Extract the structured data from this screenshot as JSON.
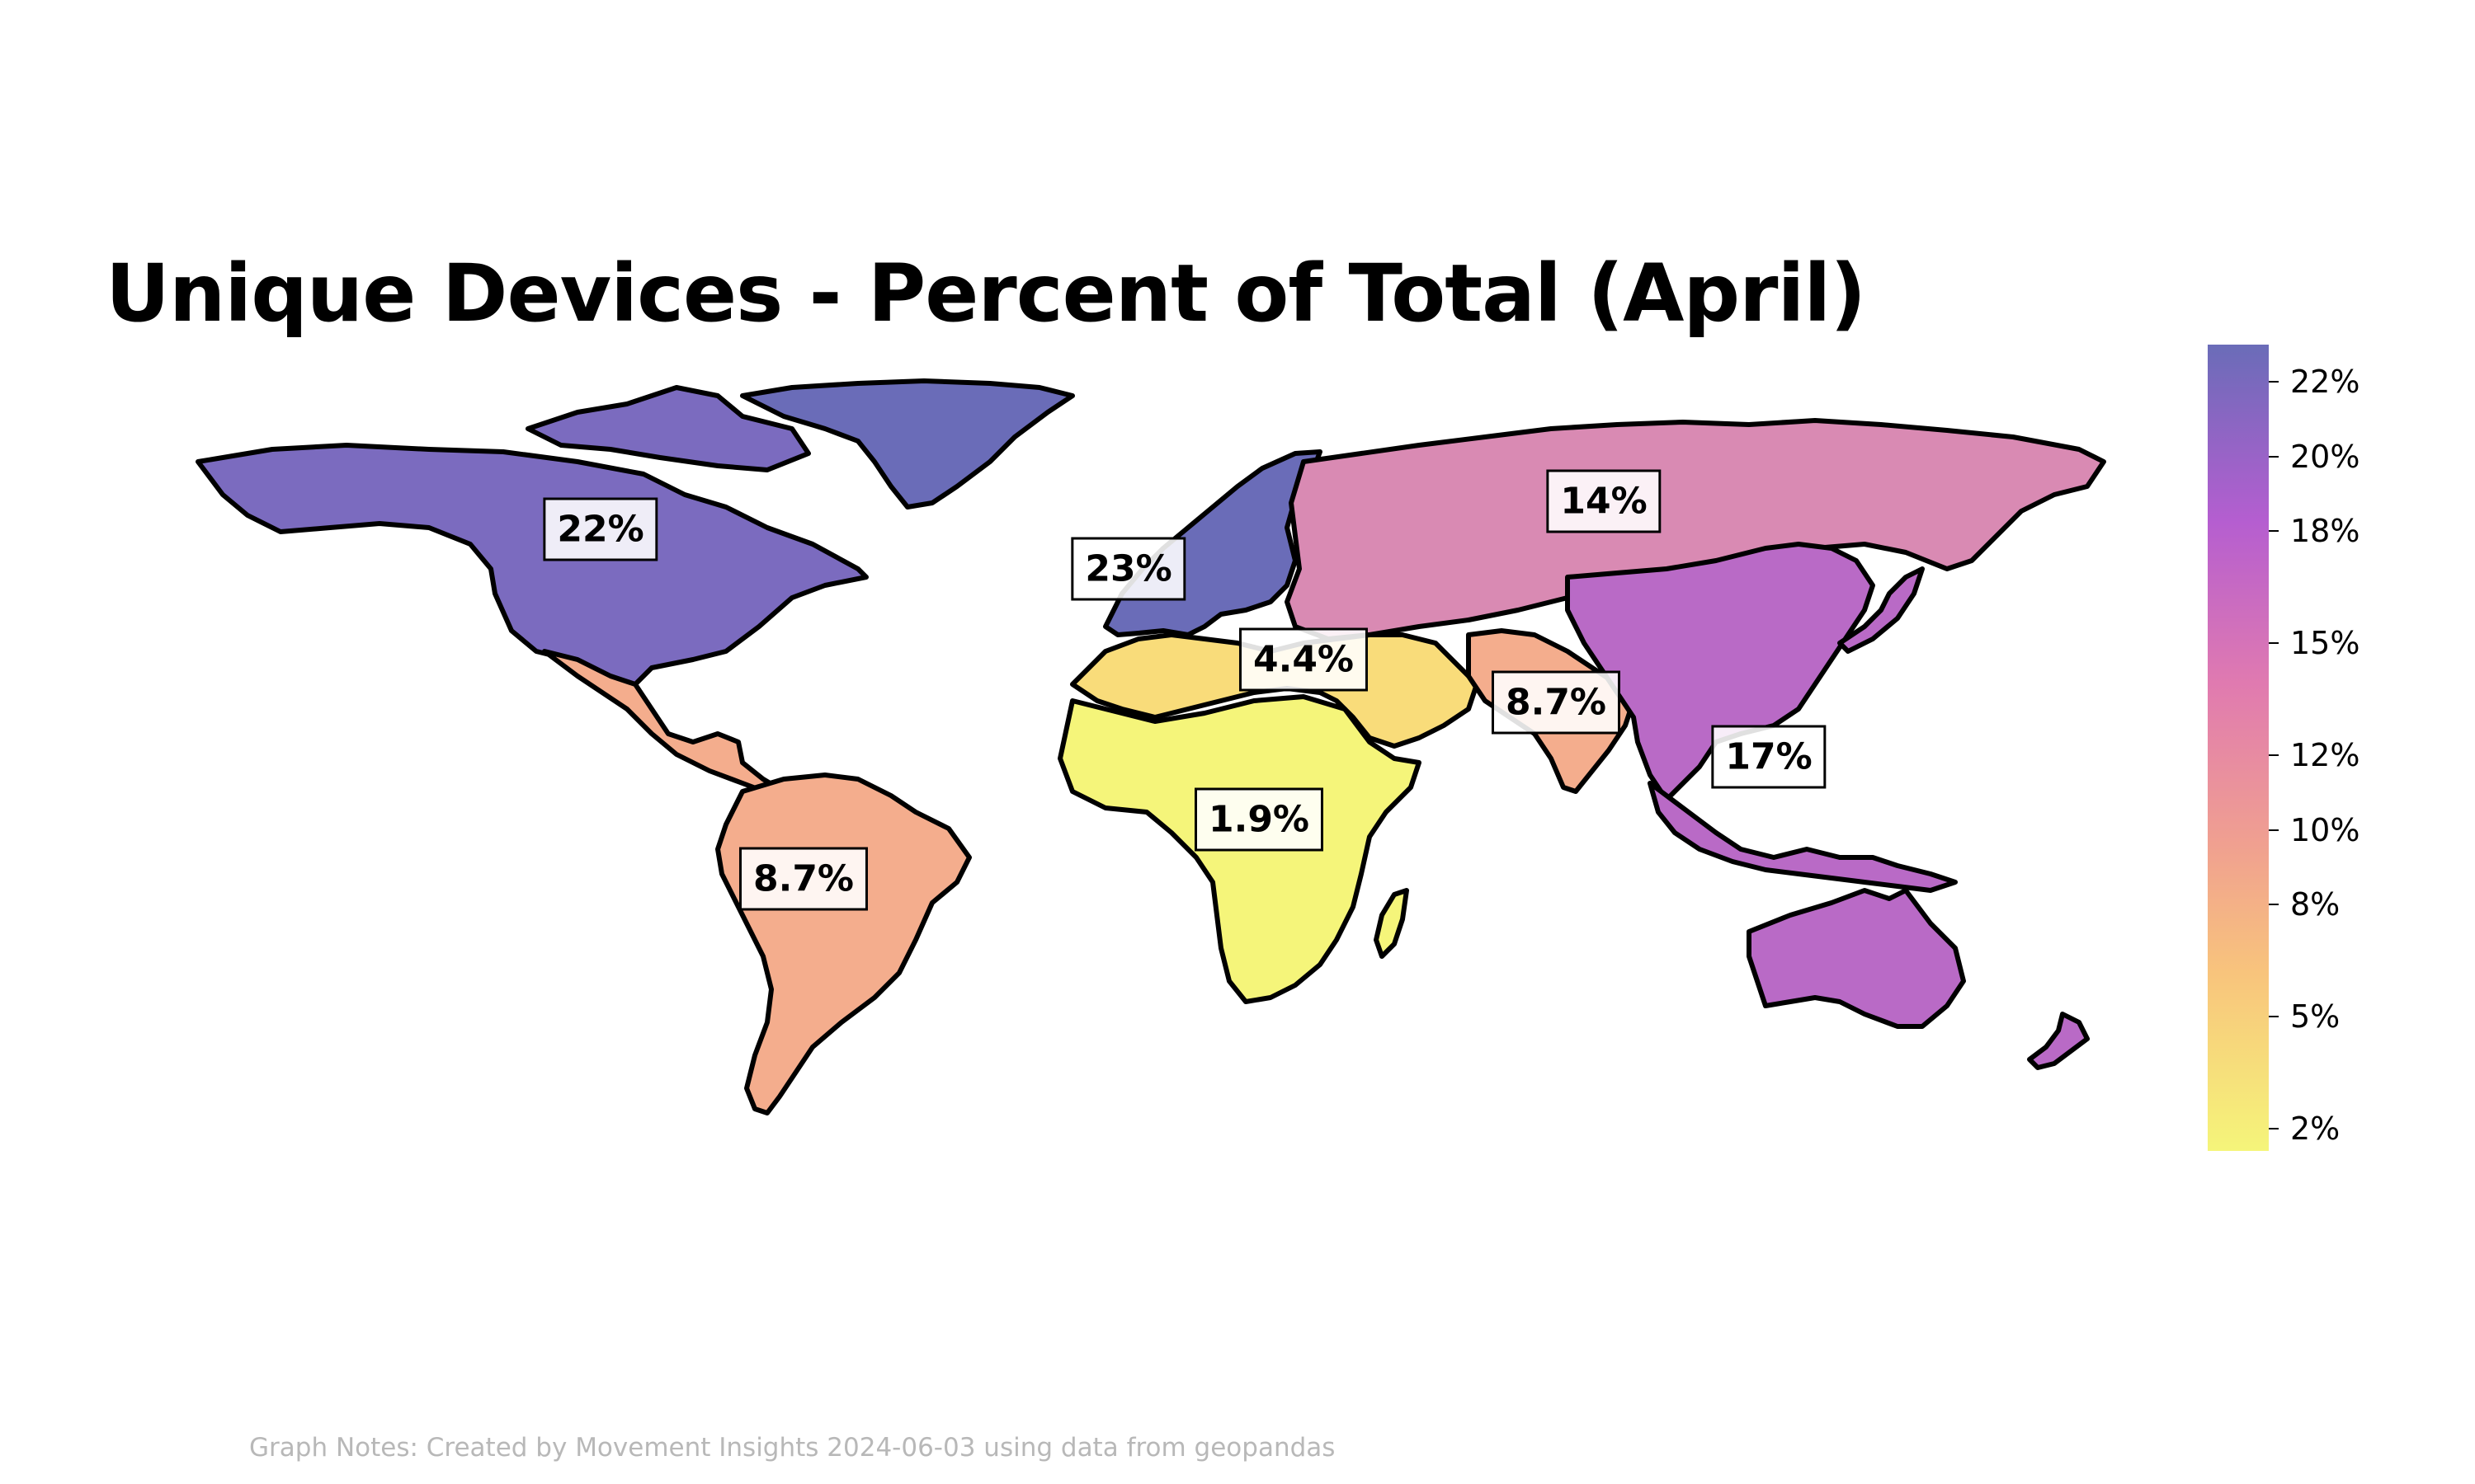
{
  "title": "Unique Devices - Percent of Total (April)",
  "notes": "Graph Notes: Created by Movement Insights 2024-06-03 using data from geopandas",
  "colorbar": {
    "min_color": "#f5f57a",
    "max_color": "#6a6cb8",
    "ticks": [
      {
        "label": "22%",
        "value": 22
      },
      {
        "label": "20%",
        "value": 20
      },
      {
        "label": "18%",
        "value": 18
      },
      {
        "label": "15%",
        "value": 15
      },
      {
        "label": "12%",
        "value": 12
      },
      {
        "label": "10%",
        "value": 10
      },
      {
        "label": "8%",
        "value": 8
      },
      {
        "label": "5%",
        "value": 5
      },
      {
        "label": "2%",
        "value": 2
      }
    ]
  },
  "regions": [
    {
      "name": "North America",
      "label": "22%",
      "value": 22,
      "color": "#7b6bbf"
    },
    {
      "name": "Europe",
      "label": "23%",
      "value": 23,
      "color": "#6a6cb8"
    },
    {
      "name": "Russia & Central Asia",
      "label": "14%",
      "value": 14,
      "color": "#d98ab3"
    },
    {
      "name": "Middle East & North Africa",
      "label": "4.4%",
      "value": 4.4,
      "color": "#f9dc7a"
    },
    {
      "name": "South Asia",
      "label": "8.7%",
      "value": 8.7,
      "color": "#f4ad8d"
    },
    {
      "name": "East Asia & Pacific",
      "label": "17%",
      "value": 17,
      "color": "#b96ac6"
    },
    {
      "name": "Sub-Saharan Africa",
      "label": "1.9%",
      "value": 1.9,
      "color": "#f5f57a"
    },
    {
      "name": "Latin America",
      "label": "8.7%",
      "value": 8.7,
      "color": "#f4ad8d"
    }
  ]
}
